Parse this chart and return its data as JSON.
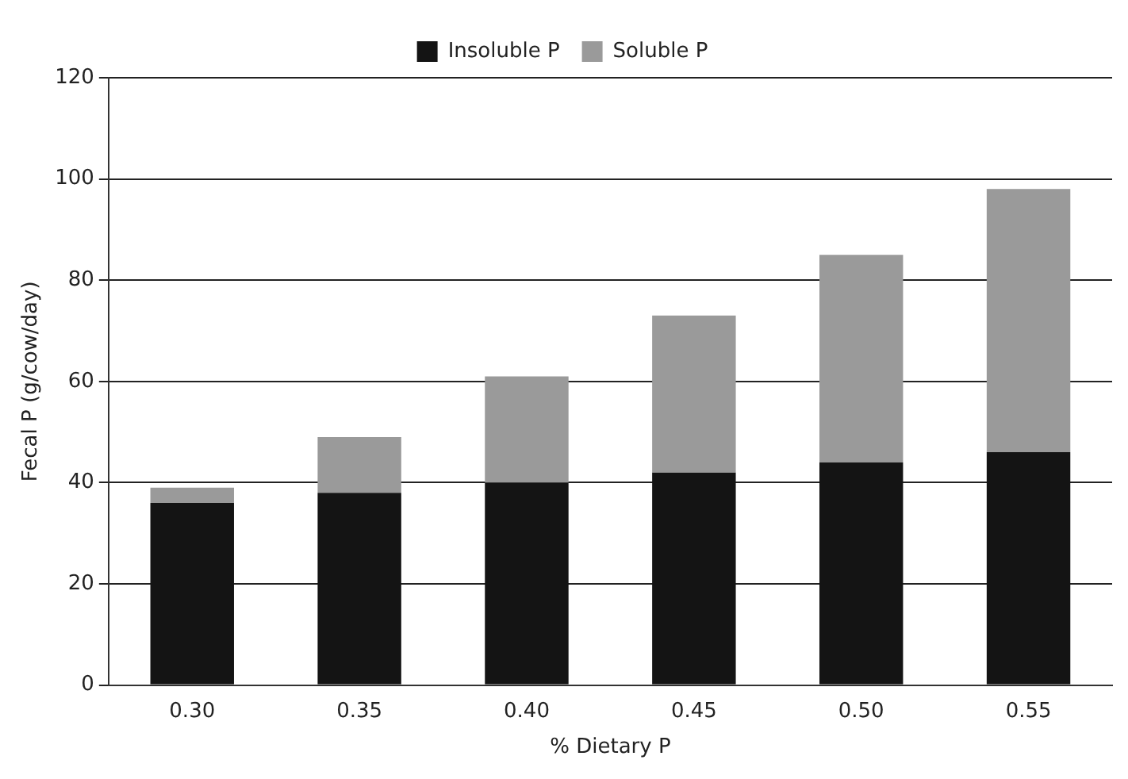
{
  "chart_data": {
    "type": "bar",
    "stacked": true,
    "categories": [
      "0.30",
      "0.35",
      "0.40",
      "0.45",
      "0.50",
      "0.55"
    ],
    "xlabel": "% Dietary P",
    "ylabel": "Fecal P (g/cow/day)",
    "ylim": [
      0,
      120
    ],
    "yticks": [
      0,
      20,
      40,
      60,
      80,
      100,
      120
    ],
    "grid": "y",
    "legend": "top",
    "series": [
      {
        "name": "Insoluble P",
        "color": "#141414",
        "values": [
          36,
          38,
          40,
          42,
          44,
          46
        ]
      },
      {
        "name": "Soluble P",
        "color": "#9a9a9a",
        "values": [
          3,
          11,
          21,
          31,
          41,
          52
        ]
      }
    ]
  }
}
